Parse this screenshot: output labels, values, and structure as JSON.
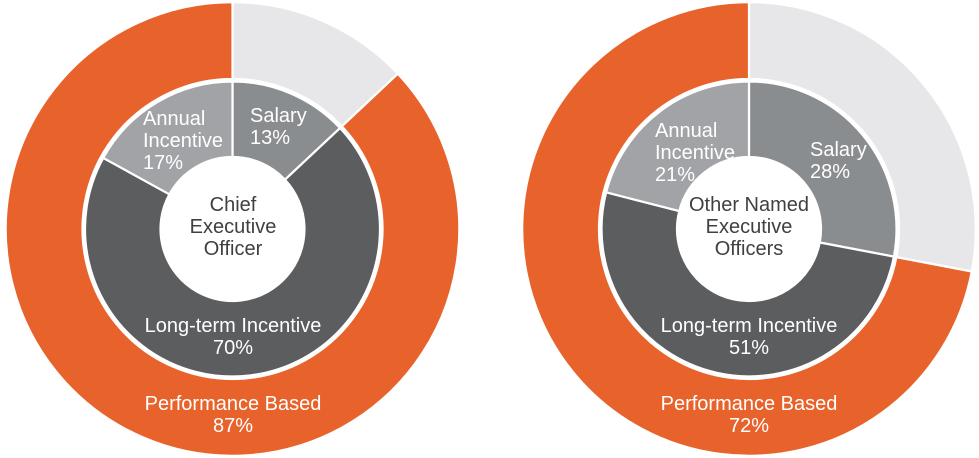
{
  "colors": {
    "background": "#FFFFFF",
    "performance_orange": "#E8622B",
    "non_performance_gray": "#E7E7E9",
    "salary_gray": "#8A8D90",
    "longterm_gray": "#5C5D5F",
    "annual_gray": "#A1A3A6",
    "center_text": "#3F4042",
    "slice_label_text": "#FFFFFF",
    "separator_white": "#FFFFFF"
  },
  "chart_data": [
    {
      "type": "donut",
      "chart_id": "ceo",
      "title": "Chief Executive Officer",
      "center_title": {
        "line1": "Chief",
        "line2": "Executive",
        "line3": "Officer"
      },
      "inner_ring": {
        "segments_order": [
          "salary",
          "longterm",
          "annual"
        ],
        "salary": {
          "name": "Salary",
          "pct_label": "13%",
          "value": 13
        },
        "longterm": {
          "name": "Long-term Incentive",
          "pct_label": "70%",
          "value": 70
        },
        "annual": {
          "name_line1": "Annual",
          "name_line2": "Incentive",
          "pct_label": "17%",
          "value": 17
        }
      },
      "outer_ring": {
        "segments_order": [
          "non_performance",
          "performance"
        ],
        "non_performance": {
          "value": 13
        },
        "performance": {
          "name": "Performance Based",
          "pct_label": "87%",
          "value": 87
        }
      }
    },
    {
      "type": "donut",
      "chart_id": "oneo",
      "title": "Other Named Executive Officers",
      "center_title": {
        "line1": "Other Named",
        "line2": "Executive",
        "line3": "Officers"
      },
      "inner_ring": {
        "segments_order": [
          "salary",
          "longterm",
          "annual"
        ],
        "salary": {
          "name": "Salary",
          "pct_label": "28%",
          "value": 28
        },
        "longterm": {
          "name": "Long-term Incentive",
          "pct_label": "51%",
          "value": 51
        },
        "annual": {
          "name_line1": "Annual",
          "name_line2": "Incentive",
          "pct_label": "21%",
          "value": 21
        }
      },
      "outer_ring": {
        "segments_order": [
          "non_performance",
          "performance"
        ],
        "non_performance": {
          "value": 28
        },
        "performance": {
          "name": "Performance Based",
          "pct_label": "72%",
          "value": 72
        }
      }
    }
  ]
}
